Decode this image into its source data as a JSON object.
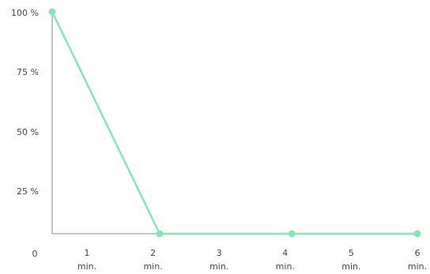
{
  "chart_data": {
    "type": "line",
    "colors": {
      "line": "#86e6b0",
      "axis": "#8a8a8a",
      "text": "#444444"
    },
    "y_ticks": [
      {
        "value": 0,
        "label": "0"
      },
      {
        "value": 25,
        "label": "25 %"
      },
      {
        "value": 50,
        "label": "50 %"
      },
      {
        "value": 75,
        "label": "75 %"
      },
      {
        "value": 100,
        "label": "100 %"
      }
    ],
    "x_ticks": [
      {
        "value": 1,
        "line1": "1",
        "line2": "min."
      },
      {
        "value": 2,
        "line1": "2",
        "line2": "min."
      },
      {
        "value": 3,
        "line1": "3",
        "line2": "min."
      },
      {
        "value": 4,
        "line1": "4",
        "line2": "min."
      },
      {
        "value": 5,
        "line1": "5",
        "line2": "min."
      },
      {
        "value": 6,
        "line1": "6",
        "line2": "min."
      }
    ],
    "xlim": [
      0,
      6
    ],
    "ylim": [
      0,
      100
    ],
    "series": [
      {
        "points": [
          {
            "x": 0.3,
            "y": 100
          },
          {
            "x": 2.1,
            "y": 0
          },
          {
            "x": 4.1,
            "y": 0
          },
          {
            "x": 6.0,
            "y": 0
          }
        ]
      }
    ],
    "grid": false,
    "legend": "none"
  }
}
